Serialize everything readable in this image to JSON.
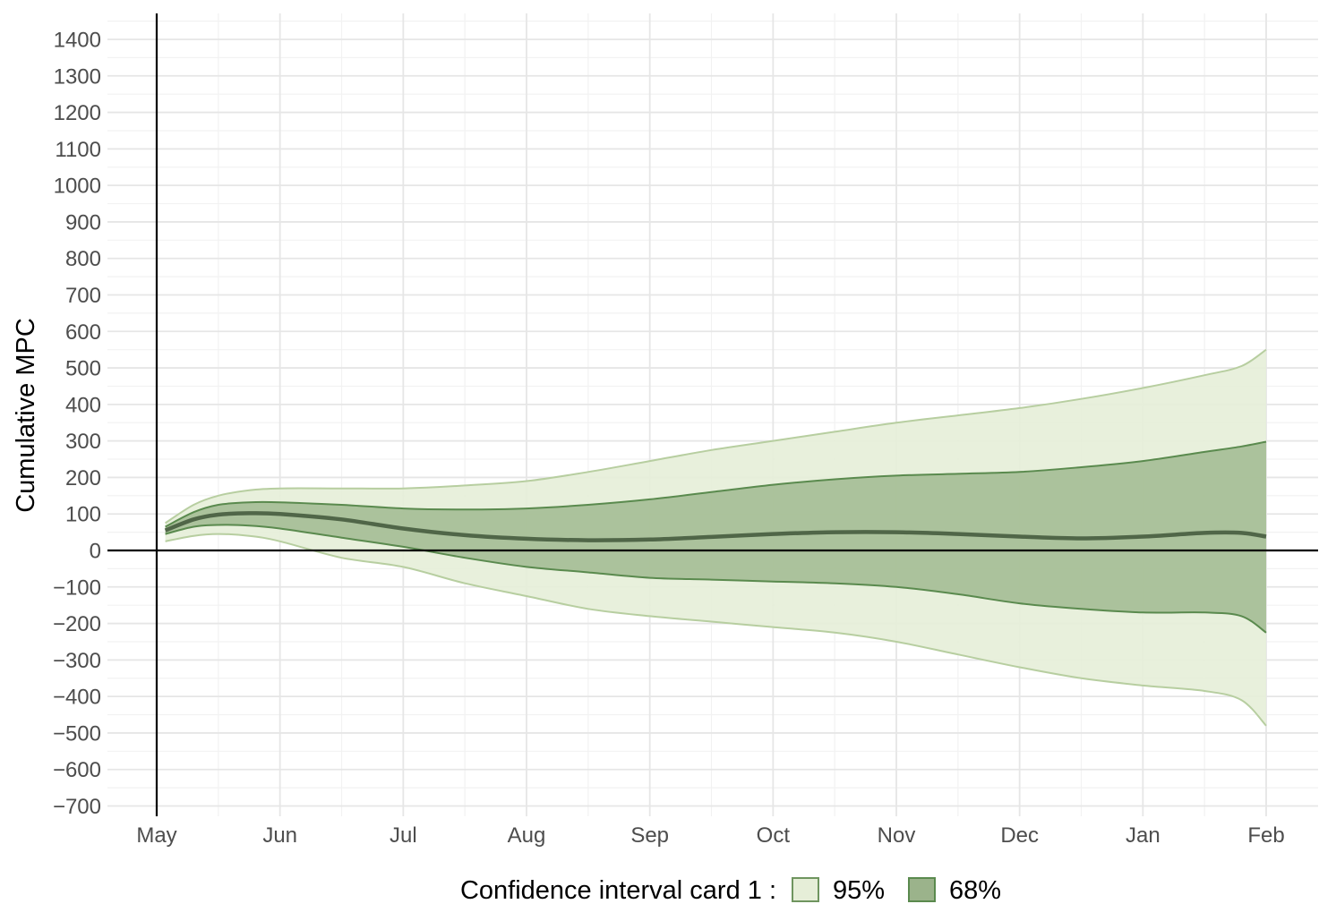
{
  "chart_data": {
    "type": "area",
    "title": "",
    "xlabel": "",
    "ylabel": "Cumulative MPC",
    "x_tick_labels": [
      "May",
      "Jun",
      "Jul",
      "Aug",
      "Sep",
      "Oct",
      "Nov",
      "Dec",
      "Jan",
      "Feb"
    ],
    "ylim": [
      -700,
      1400
    ],
    "y_ticks": [
      -700,
      -600,
      -500,
      -400,
      -300,
      -200,
      -100,
      0,
      100,
      200,
      300,
      400,
      500,
      600,
      700,
      800,
      900,
      1000,
      1100,
      1200,
      1300,
      1400
    ],
    "y_tick_labels": [
      "−700",
      "−600",
      "−500",
      "−400",
      "−300",
      "−200",
      "−100",
      "0",
      "100",
      "200",
      "300",
      "400",
      "500",
      "600",
      "700",
      "800",
      "900",
      "1000",
      "1100",
      "1200",
      "1300",
      "1400"
    ],
    "x": [
      0.07,
      0.3,
      0.5,
      0.75,
      1.0,
      1.5,
      2.0,
      2.5,
      3.0,
      3.5,
      4.0,
      4.5,
      5.0,
      5.5,
      6.0,
      6.5,
      7.0,
      7.5,
      8.0,
      8.5,
      8.8,
      9.0
    ],
    "series": [
      {
        "role": "ci95",
        "lower": [
          25,
          40,
          45,
          40,
          25,
          -20,
          -45,
          -90,
          -125,
          -160,
          -180,
          -195,
          -210,
          -225,
          -250,
          -285,
          -320,
          -350,
          -370,
          -385,
          -410,
          -480
        ],
        "upper": [
          75,
          125,
          150,
          165,
          170,
          170,
          170,
          178,
          190,
          215,
          245,
          275,
          300,
          325,
          350,
          370,
          390,
          415,
          445,
          480,
          505,
          550
        ]
      },
      {
        "role": "ci68",
        "lower": [
          45,
          65,
          70,
          68,
          60,
          35,
          10,
          -20,
          -45,
          -60,
          -75,
          -80,
          -85,
          -90,
          -100,
          -120,
          -145,
          -160,
          -170,
          -170,
          -180,
          -225
        ],
        "upper": [
          65,
          105,
          125,
          132,
          132,
          125,
          115,
          112,
          115,
          125,
          140,
          160,
          180,
          195,
          205,
          210,
          215,
          228,
          245,
          270,
          285,
          298
        ]
      },
      {
        "role": "point",
        "values": [
          55,
          85,
          98,
          102,
          100,
          85,
          60,
          42,
          32,
          28,
          30,
          37,
          45,
          50,
          50,
          45,
          38,
          33,
          38,
          48,
          48,
          38
        ]
      }
    ],
    "legend": {
      "title": "Confidence interval card 1 :",
      "position": "bottom",
      "entries": [
        {
          "label": "95%",
          "color": "#e6eed8"
        },
        {
          "label": "68%",
          "color": "#9bb38b"
        }
      ]
    },
    "colors": {
      "ci95_fill": "#e6eed8",
      "ci95_line": "#b7cea0",
      "ci68_fill": "#a8bf98",
      "ci68_line": "#5a8a4e",
      "point_line": "#506648",
      "grid_major": "#e6e6e6",
      "grid_minor": "#f2f2f2",
      "axis": "#000000"
    },
    "grid": true
  }
}
